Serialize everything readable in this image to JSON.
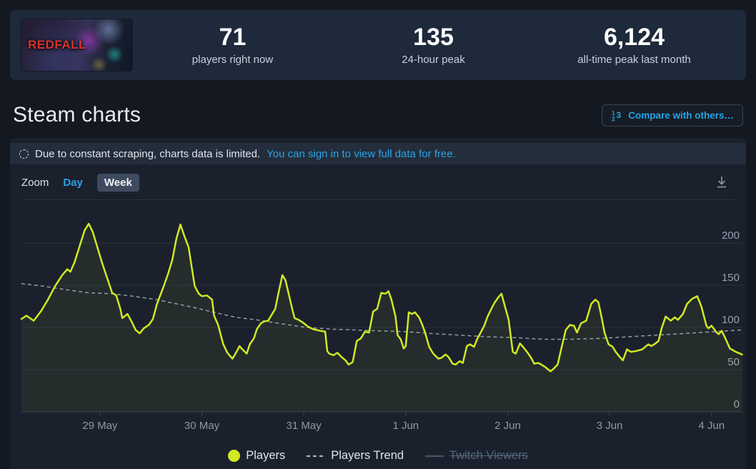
{
  "header": {
    "game_title": "REDFALL",
    "stats": [
      {
        "value": "71",
        "label": "players right now"
      },
      {
        "value": "135",
        "label": "24-hour peak"
      },
      {
        "value": "6,124",
        "label": "all-time peak last month"
      }
    ]
  },
  "page": {
    "title": "Steam charts",
    "compare_button_label": "Compare with others…"
  },
  "notice": {
    "text": "Due to constant scraping, charts data is limited.",
    "link": "You can sign in to view full data for free."
  },
  "controls": {
    "zoom_label": "Zoom",
    "options": [
      "Day",
      "Week"
    ],
    "selected": "Week"
  },
  "icons": {
    "notice": "dashed-circle-icon",
    "compare": "numeric-123-icon",
    "download": "download-icon"
  },
  "colors": {
    "players_line": "#d2e823",
    "players_fill": "rgba(210,232,35,0.06)",
    "trend_line": "#a7b0b8",
    "twitch_disabled": "#45556a",
    "link_blue": "#2ca3e5",
    "grid": "#29313d",
    "axis": "#39424e",
    "tick_label": "#8d98a4",
    "y_label": "#95a0ac"
  },
  "chart_data": {
    "type": "area",
    "title": "",
    "xlabel": "",
    "ylabel": "",
    "grid": true,
    "legend_position": "bottom-center",
    "x_axis": {
      "labels": [
        "29 May",
        "30 May",
        "31 May",
        "1 Jun",
        "2 Jun",
        "3 Jun",
        "4 Jun"
      ],
      "range_days": [
        -0.77,
        6.31
      ]
    },
    "y_axis": {
      "ticks": [
        0,
        50,
        100,
        150,
        200
      ],
      "range": [
        0,
        241
      ]
    },
    "legend": [
      {
        "name": "Players",
        "color": "#d2e823",
        "style": "solid",
        "enabled": true
      },
      {
        "name": "Players Trend",
        "color": "#a7b0b8",
        "style": "dashed",
        "enabled": true
      },
      {
        "name": "Twitch Viewers",
        "color": "#45556a",
        "style": "solid",
        "enabled": false
      }
    ],
    "series": [
      {
        "name": "Players",
        "style": "solid-area",
        "color": "#d2e823",
        "points": [
          [
            -0.77,
            110
          ],
          [
            -0.72,
            114
          ],
          [
            -0.65,
            108
          ],
          [
            -0.58,
            119
          ],
          [
            -0.51,
            133
          ],
          [
            -0.44,
            149
          ],
          [
            -0.37,
            162
          ],
          [
            -0.32,
            169
          ],
          [
            -0.29,
            166
          ],
          [
            -0.25,
            177
          ],
          [
            -0.2,
            196
          ],
          [
            -0.15,
            215
          ],
          [
            -0.11,
            223
          ],
          [
            -0.07,
            213
          ],
          [
            -0.02,
            193
          ],
          [
            0.02,
            177
          ],
          [
            0.07,
            159
          ],
          [
            0.12,
            141
          ],
          [
            0.16,
            138
          ],
          [
            0.2,
            122
          ],
          [
            0.22,
            111
          ],
          [
            0.27,
            116
          ],
          [
            0.31,
            107
          ],
          [
            0.35,
            97
          ],
          [
            0.39,
            93
          ],
          [
            0.43,
            99
          ],
          [
            0.48,
            103
          ],
          [
            0.52,
            110
          ],
          [
            0.56,
            128
          ],
          [
            0.62,
            147
          ],
          [
            0.67,
            164
          ],
          [
            0.71,
            180
          ],
          [
            0.75,
            205
          ],
          [
            0.79,
            222
          ],
          [
            0.83,
            208
          ],
          [
            0.87,
            195
          ],
          [
            0.9,
            172
          ],
          [
            0.93,
            149
          ],
          [
            0.97,
            140
          ],
          [
            1.0,
            137
          ],
          [
            1.05,
            138
          ],
          [
            1.1,
            133
          ],
          [
            1.12,
            114
          ],
          [
            1.16,
            103
          ],
          [
            1.19,
            89
          ],
          [
            1.21,
            80
          ],
          [
            1.25,
            70
          ],
          [
            1.3,
            63
          ],
          [
            1.33,
            69
          ],
          [
            1.37,
            78
          ],
          [
            1.39,
            75
          ],
          [
            1.44,
            69
          ],
          [
            1.47,
            80
          ],
          [
            1.51,
            87
          ],
          [
            1.54,
            98
          ],
          [
            1.58,
            105
          ],
          [
            1.61,
            107
          ],
          [
            1.65,
            108
          ],
          [
            1.72,
            122
          ],
          [
            1.75,
            140
          ],
          [
            1.79,
            162
          ],
          [
            1.82,
            156
          ],
          [
            1.89,
            120
          ],
          [
            1.91,
            111
          ],
          [
            1.95,
            109
          ],
          [
            2.0,
            105
          ],
          [
            2.04,
            101
          ],
          [
            2.09,
            98
          ],
          [
            2.16,
            96
          ],
          [
            2.21,
            95
          ],
          [
            2.23,
            72
          ],
          [
            2.25,
            69
          ],
          [
            2.29,
            67
          ],
          [
            2.33,
            70
          ],
          [
            2.37,
            65
          ],
          [
            2.41,
            61
          ],
          [
            2.44,
            56
          ],
          [
            2.48,
            59
          ],
          [
            2.52,
            84
          ],
          [
            2.56,
            87
          ],
          [
            2.6,
            95
          ],
          [
            2.64,
            94
          ],
          [
            2.68,
            119
          ],
          [
            2.72,
            122
          ],
          [
            2.76,
            141
          ],
          [
            2.8,
            140
          ],
          [
            2.83,
            143
          ],
          [
            2.86,
            133
          ],
          [
            2.9,
            113
          ],
          [
            2.92,
            91
          ],
          [
            2.95,
            86
          ],
          [
            2.98,
            75
          ],
          [
            3.0,
            78
          ],
          [
            3.03,
            118
          ],
          [
            3.06,
            116
          ],
          [
            3.09,
            118
          ],
          [
            3.13,
            112
          ],
          [
            3.16,
            104
          ],
          [
            3.19,
            94
          ],
          [
            3.23,
            77
          ],
          [
            3.27,
            69
          ],
          [
            3.32,
            63
          ],
          [
            3.35,
            64
          ],
          [
            3.39,
            68
          ],
          [
            3.42,
            65
          ],
          [
            3.46,
            57
          ],
          [
            3.49,
            56
          ],
          [
            3.53,
            60
          ],
          [
            3.56,
            58
          ],
          [
            3.6,
            78
          ],
          [
            3.63,
            80
          ],
          [
            3.67,
            77
          ],
          [
            3.7,
            86
          ],
          [
            3.77,
            102
          ],
          [
            3.8,
            112
          ],
          [
            3.84,
            122
          ],
          [
            3.87,
            129
          ],
          [
            3.91,
            136
          ],
          [
            3.94,
            140
          ],
          [
            3.98,
            122
          ],
          [
            4.01,
            109
          ],
          [
            4.05,
            71
          ],
          [
            4.08,
            69
          ],
          [
            4.12,
            81
          ],
          [
            4.15,
            77
          ],
          [
            4.19,
            71
          ],
          [
            4.23,
            64
          ],
          [
            4.26,
            57
          ],
          [
            4.3,
            58
          ],
          [
            4.33,
            56
          ],
          [
            4.37,
            53
          ],
          [
            4.42,
            48
          ],
          [
            4.45,
            51
          ],
          [
            4.49,
            56
          ],
          [
            4.54,
            82
          ],
          [
            4.57,
            97
          ],
          [
            4.61,
            103
          ],
          [
            4.65,
            102
          ],
          [
            4.68,
            94
          ],
          [
            4.72,
            105
          ],
          [
            4.77,
            108
          ],
          [
            4.82,
            128
          ],
          [
            4.86,
            133
          ],
          [
            4.89,
            130
          ],
          [
            4.92,
            113
          ],
          [
            4.95,
            94
          ],
          [
            4.99,
            80
          ],
          [
            5.03,
            77
          ],
          [
            5.06,
            71
          ],
          [
            5.1,
            65
          ],
          [
            5.13,
            61
          ],
          [
            5.17,
            74
          ],
          [
            5.21,
            71
          ],
          [
            5.26,
            72
          ],
          [
            5.32,
            74
          ],
          [
            5.38,
            80
          ],
          [
            5.41,
            78
          ],
          [
            5.45,
            81
          ],
          [
            5.48,
            84
          ],
          [
            5.51,
            99
          ],
          [
            5.55,
            113
          ],
          [
            5.6,
            108
          ],
          [
            5.64,
            112
          ],
          [
            5.67,
            109
          ],
          [
            5.72,
            116
          ],
          [
            5.76,
            128
          ],
          [
            5.81,
            134
          ],
          [
            5.86,
            137
          ],
          [
            5.9,
            125
          ],
          [
            5.95,
            102
          ],
          [
            5.97,
            99
          ],
          [
            6.0,
            102
          ],
          [
            6.05,
            94
          ],
          [
            6.07,
            92
          ],
          [
            6.1,
            96
          ],
          [
            6.14,
            86
          ],
          [
            6.18,
            75
          ],
          [
            6.24,
            71
          ],
          [
            6.3,
            68
          ]
        ]
      },
      {
        "name": "Players Trend",
        "style": "dashed",
        "color": "#a7b0b8",
        "points": [
          [
            -0.77,
            152
          ],
          [
            -0.56,
            149
          ],
          [
            -0.35,
            145
          ],
          [
            -0.11,
            141
          ],
          [
            0.11,
            140
          ],
          [
            0.32,
            137
          ],
          [
            0.56,
            133
          ],
          [
            0.67,
            130
          ],
          [
            0.91,
            124
          ],
          [
            1.12,
            118
          ],
          [
            1.33,
            112
          ],
          [
            1.54,
            109
          ],
          [
            1.8,
            104
          ],
          [
            2.03,
            100
          ],
          [
            2.27,
            98
          ],
          [
            2.5,
            97
          ],
          [
            2.73,
            96
          ],
          [
            3.0,
            95
          ],
          [
            3.23,
            93
          ],
          [
            3.51,
            91
          ],
          [
            3.79,
            89
          ],
          [
            4.07,
            88
          ],
          [
            4.35,
            86
          ],
          [
            4.63,
            86
          ],
          [
            4.91,
            87
          ],
          [
            5.19,
            89
          ],
          [
            5.47,
            91
          ],
          [
            5.75,
            93
          ],
          [
            6.03,
            95
          ],
          [
            6.3,
            97
          ]
        ]
      }
    ]
  }
}
